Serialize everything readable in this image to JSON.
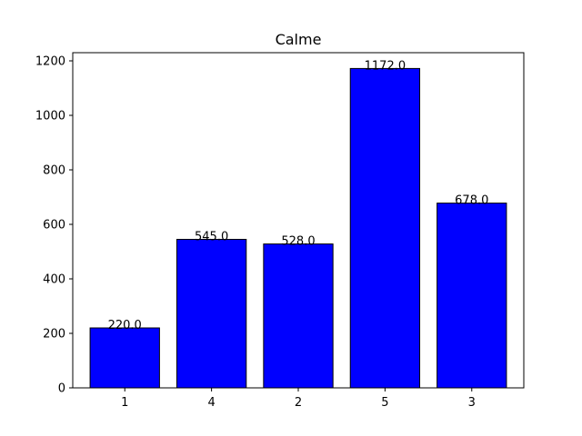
{
  "chart_data": {
    "type": "bar",
    "title": "Calme",
    "xlabel": "",
    "ylabel": "",
    "categories": [
      "1",
      "4",
      "2",
      "5",
      "3"
    ],
    "values": [
      220.0,
      545.0,
      528.0,
      1172.0,
      678.0
    ],
    "data_labels": [
      "220.0",
      "545.0",
      "528.0",
      "1172.0",
      "678.0"
    ],
    "ylim": [
      0,
      1230
    ],
    "yticks": [
      0,
      200,
      400,
      600,
      800,
      1000,
      1200
    ],
    "ytick_labels": [
      "0",
      "200",
      "400",
      "600",
      "800",
      "1000",
      "1200"
    ],
    "grid": false,
    "bar_color": "#0000ff",
    "edge_color": "#000000"
  }
}
